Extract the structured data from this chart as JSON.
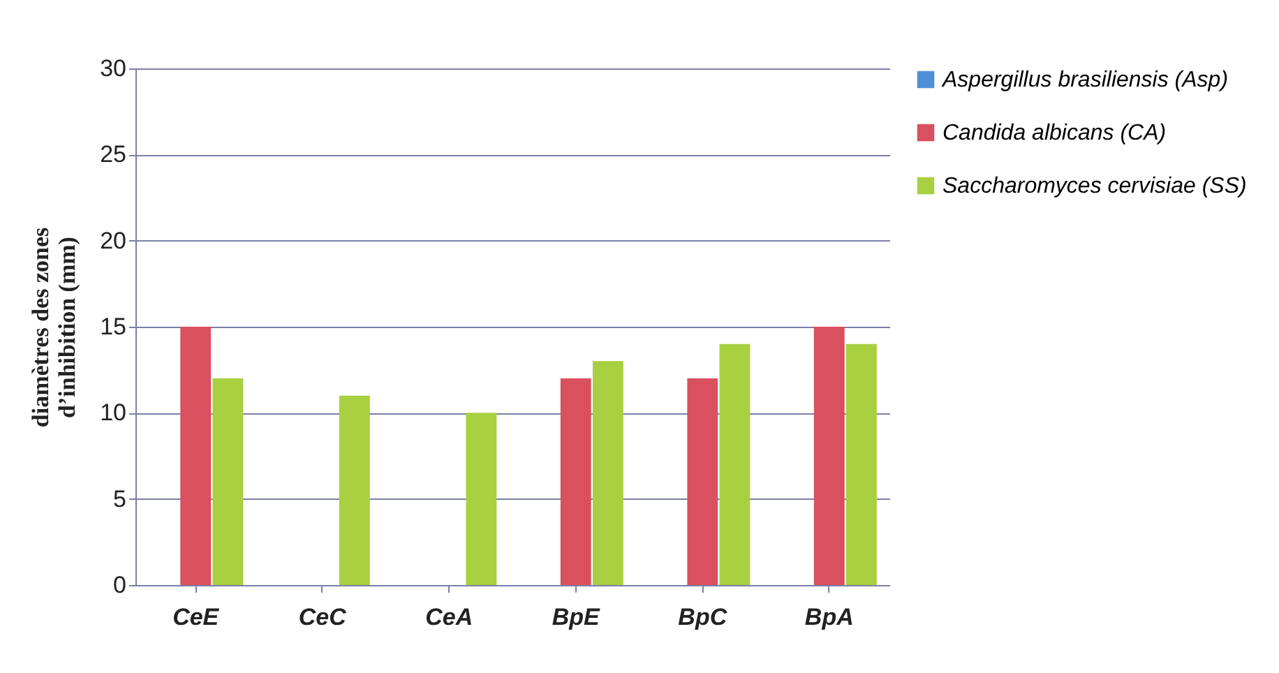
{
  "chart_data": {
    "type": "bar",
    "ylabel": "diamètres des zones\nd’inhibition (mm)",
    "categories": [
      "CeE",
      "CeC",
      "CeA",
      "BpE",
      "BpC",
      "BpA"
    ],
    "series": [
      {
        "name": "Aspergillus brasiliensis (Asp)",
        "color": "#4f8fd8",
        "values": [
          0,
          0,
          0,
          0,
          0,
          0
        ]
      },
      {
        "name": "Candida albicans (CA)",
        "color": "#d9505e",
        "values": [
          15,
          0,
          0,
          12,
          12,
          15
        ]
      },
      {
        "name": "Saccharomyces cervisiae (SS)",
        "color": "#a8d040",
        "values": [
          12,
          11,
          10,
          13,
          14,
          14
        ]
      }
    ],
    "ylim": [
      0,
      30
    ],
    "yticks": [
      0,
      5,
      10,
      15,
      20,
      25,
      30
    ],
    "grid": "y",
    "legend": "right"
  }
}
